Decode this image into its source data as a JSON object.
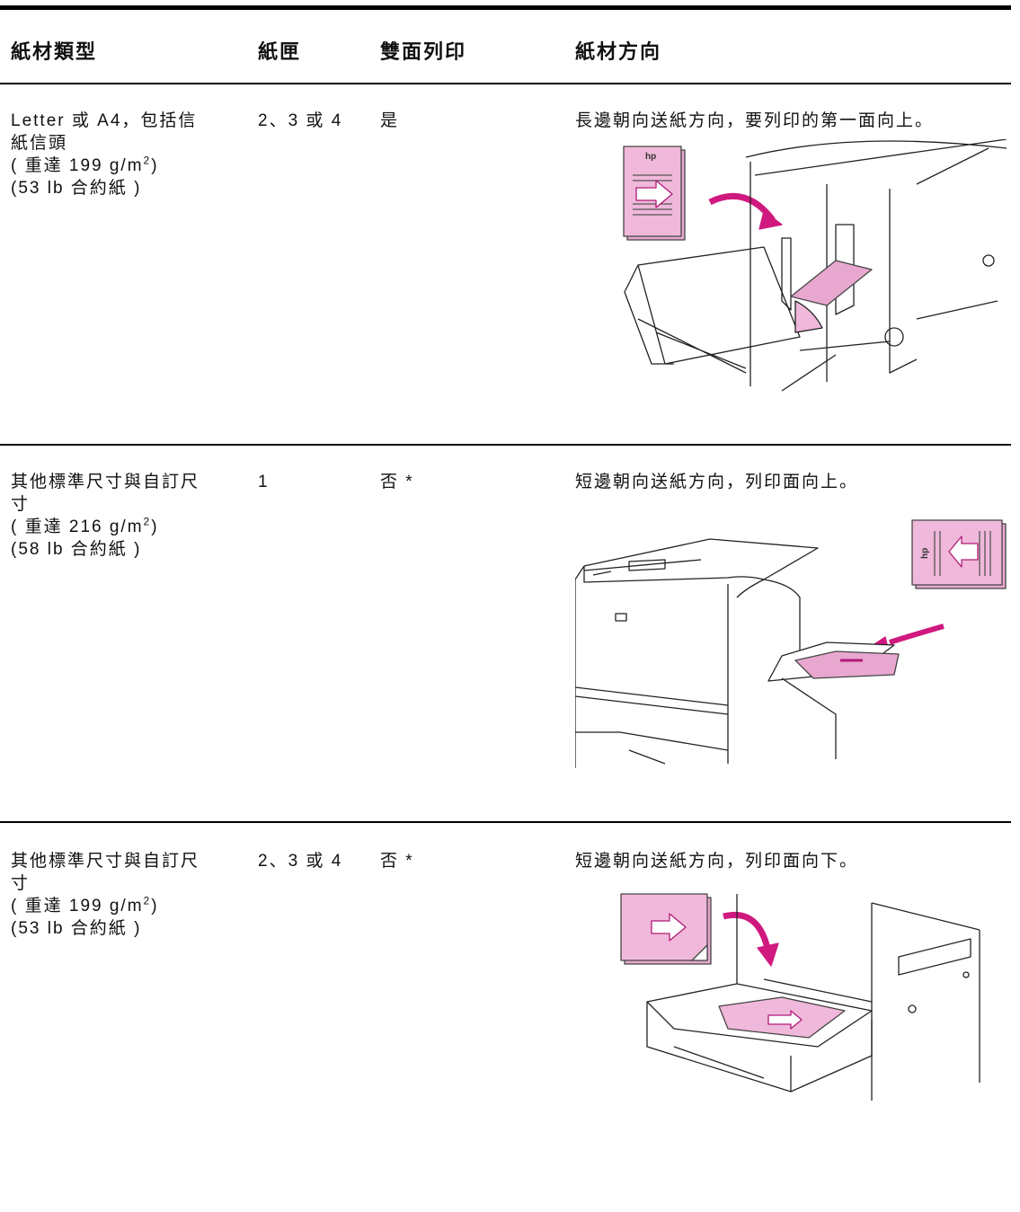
{
  "table": {
    "headers": [
      "紙材類型",
      "紙匣",
      "雙面列印",
      "紙材方向"
    ],
    "rows": [
      {
        "type": "Letter 或 A4，包括信紙信頭",
        "weight": {
          "prefix": "( 重達 199 g/m",
          "sup": "2",
          "suffix": ")"
        },
        "basis": "(53 lb 合約紙 )",
        "tray": "2、3 或 4",
        "duplex": "是",
        "orientation": "長邊朝向送紙方向，要列印的第一面向上。"
      },
      {
        "type": "其他標準尺寸與自訂尺寸",
        "weight": {
          "prefix": "( 重達 216 g/m",
          "sup": "2",
          "suffix": ")"
        },
        "basis": "(58 lb 合約紙 )",
        "tray": "1",
        "duplex": "否 *",
        "orientation": "短邊朝向送紙方向，列印面向上。"
      },
      {
        "type": "其他標準尺寸與自訂尺寸",
        "weight": {
          "prefix": "( 重達 199 g/m",
          "sup": "2",
          "suffix": ")"
        },
        "basis": "(53 lb 合約紙 )",
        "tray": "2、3 或 4",
        "duplex": "否 *",
        "orientation": "短邊朝向送紙方向，列印面向下。"
      }
    ]
  }
}
